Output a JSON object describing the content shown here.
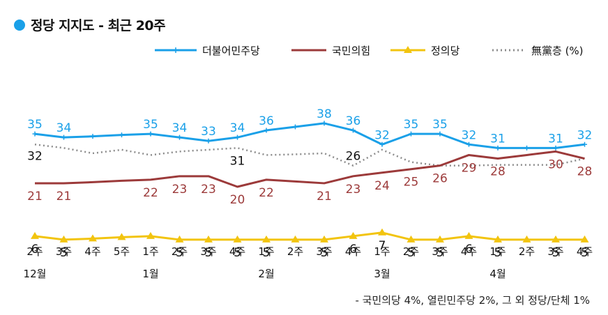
{
  "chart_data": {
    "type": "line",
    "title": "정당 지지도 - 최근 20주",
    "categories": [
      "2주",
      "3주",
      "4주",
      "5주",
      "1주",
      "2주",
      "3주",
      "4주",
      "1주",
      "2주",
      "3주",
      "4주",
      "1주",
      "2주",
      "3주",
      "4주",
      "1주",
      "2주",
      "3주",
      "4주"
    ],
    "month_labels": [
      {
        "label": "12월",
        "index": 0
      },
      {
        "label": "1월",
        "index": 4
      },
      {
        "label": "2월",
        "index": 8
      },
      {
        "label": "3월",
        "index": 12
      },
      {
        "label": "4월",
        "index": 16
      }
    ],
    "series": [
      {
        "name": "더불어민주당",
        "color": "#1aa0e8",
        "marker": "plus",
        "values": [
          35,
          34,
          34.3,
          34.7,
          35,
          34,
          33,
          34,
          36,
          37,
          38,
          36,
          32,
          35,
          35,
          32,
          31,
          31,
          31,
          32
        ],
        "labels": [
          "35",
          "34",
          "",
          "",
          "35",
          "34",
          "33",
          "34",
          "36",
          "",
          "38",
          "36",
          "32",
          "35",
          "35",
          "32",
          "31",
          "",
          "31",
          "32"
        ]
      },
      {
        "name": "국민의힘",
        "color": "#9c3a3a",
        "marker": "none",
        "values": [
          21,
          21,
          21.3,
          21.7,
          22,
          23,
          23,
          20,
          22,
          21.5,
          21,
          23,
          24,
          25,
          26,
          29,
          28,
          29,
          30,
          28
        ],
        "labels": [
          "21",
          "21",
          "",
          "",
          "22",
          "23",
          "23",
          "20",
          "22",
          "",
          "21",
          "23",
          "24",
          "25",
          "26",
          "29",
          "28",
          "",
          "30",
          "28"
        ]
      },
      {
        "name": "정의당",
        "color": "#f2c40f",
        "marker": "triangle",
        "values": [
          6,
          5,
          5.3,
          5.7,
          6,
          5,
          5,
          5,
          5,
          5,
          5,
          6,
          7,
          5,
          5,
          6,
          5,
          5,
          5,
          5
        ],
        "labels": [
          "6",
          "5",
          "",
          "",
          "",
          "5",
          "5",
          "5",
          "5",
          "",
          "5",
          "6",
          "7",
          "5",
          "5",
          "6",
          "5",
          "",
          "5",
          "5"
        ]
      },
      {
        "name": "無黨층 (%)",
        "color": "#8c8c8c",
        "marker": "none",
        "dashed": true,
        "values": [
          32,
          31,
          29.5,
          30.5,
          29,
          30,
          30.5,
          31,
          29,
          29.2,
          29.5,
          26,
          30.5,
          27,
          26,
          26,
          26.2,
          26.2,
          26.2,
          28
        ],
        "labels": [
          "32",
          "",
          "",
          "",
          "",
          "",
          "",
          "31",
          "",
          "",
          "",
          "26",
          "",
          "",
          "",
          "",
          "",
          "",
          "",
          ""
        ]
      }
    ],
    "ylim": [
      0,
      42
    ],
    "grid": false,
    "legend_position": "top-right",
    "footnote": "- 국민의당 4%, 열린민주당 2%, 그 외 정당/단체 1%"
  }
}
